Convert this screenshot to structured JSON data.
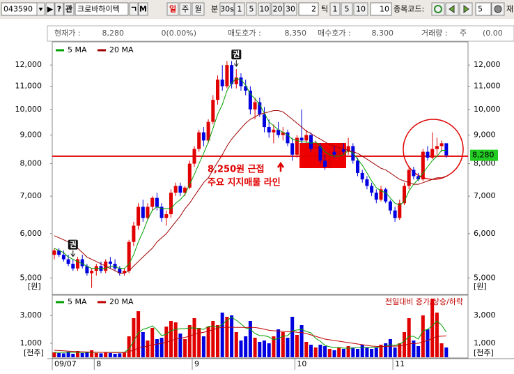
{
  "toolbar": {
    "code": "043590",
    "play": "▶",
    "help": "?",
    "watch": "관",
    "name": "크로바하이텍",
    "icon1": "ㄱ",
    "icon2": "M",
    "periods": [
      "일",
      "주",
      "월",
      "분"
    ],
    "minutes": [
      "30s",
      "1",
      "5",
      "10",
      "20",
      "30"
    ],
    "minute_input": "2",
    "tick": "틱",
    "ticks": [
      "1",
      "5",
      "10"
    ],
    "tick_input": "10",
    "code_label": "종목코드:",
    "count_input": "5",
    "more": "재"
  },
  "info_bar": {
    "price_label": "현재가 :",
    "price": "8,280",
    "change": "0(0.00%)",
    "ask_label": "매도호가 :",
    "ask": "8,350",
    "bid_label": "매수호가 :",
    "bid": "8,300",
    "volume_label": "거래량 :",
    "volume_unit": "주",
    "volume_change": "(0.00"
  },
  "chart_data": [
    {
      "type": "candlestick",
      "log_scale": true,
      "open": [
        5500,
        5600,
        5500,
        5400,
        5300,
        5200,
        5400,
        5250,
        5100,
        5150,
        5250,
        5150,
        5350,
        5300,
        5200,
        5100,
        5150,
        5800,
        6200,
        6700,
        6400,
        6700,
        6950,
        6700,
        6400,
        6500,
        7100,
        7300,
        7100,
        7250,
        8000,
        8500,
        9100,
        8800,
        9500,
        10400,
        11300,
        11000,
        12000,
        11100,
        11400,
        11000,
        10800,
        10000,
        10300,
        9800,
        9300,
        9100,
        9200,
        9000,
        9100,
        8700,
        8300,
        8900,
        8800,
        9000,
        8500,
        8600,
        8100,
        7900,
        8400,
        8300,
        8500,
        8400,
        8600,
        8100,
        7700,
        7500,
        7300,
        7100,
        6900,
        7200,
        6850,
        6600,
        6400,
        6800,
        7300,
        7800,
        7600,
        7500,
        8400,
        8200,
        8500,
        8600,
        8700
      ],
      "high": [
        5650,
        5650,
        5600,
        5500,
        5400,
        5450,
        5500,
        5300,
        5200,
        5300,
        5350,
        5400,
        5450,
        5400,
        5250,
        5200,
        5850,
        6300,
        6800,
        6900,
        6800,
        7000,
        7100,
        6800,
        6600,
        7200,
        7400,
        7400,
        7300,
        8100,
        8600,
        9200,
        9300,
        9600,
        10600,
        11500,
        12000,
        12200,
        12200,
        11800,
        11600,
        11300,
        11000,
        10500,
        10500,
        10100,
        9600,
        9400,
        9500,
        9300,
        9200,
        8900,
        9000,
        10000,
        9200,
        9100,
        8800,
        8700,
        8300,
        8500,
        8600,
        8600,
        8700,
        8900,
        8700,
        8200,
        7800,
        7600,
        7400,
        7200,
        7300,
        7250,
        6900,
        6700,
        6900,
        7400,
        7900,
        7900,
        7700,
        8500,
        8600,
        9100,
        8900,
        8800,
        8700
      ],
      "low": [
        5400,
        5450,
        5350,
        5250,
        5150,
        5150,
        5200,
        5050,
        4800,
        5050,
        5100,
        5100,
        5200,
        5150,
        5050,
        5050,
        5100,
        5700,
        6100,
        6300,
        6350,
        6600,
        6600,
        6300,
        6200,
        6400,
        7000,
        7000,
        7000,
        7200,
        7900,
        8400,
        8600,
        8700,
        9400,
        10200,
        10800,
        10900,
        10900,
        10900,
        10800,
        10600,
        9800,
        9600,
        9700,
        9100,
        8900,
        8700,
        8900,
        8800,
        8600,
        8100,
        8200,
        8700,
        8600,
        8400,
        8300,
        8000,
        7800,
        7850,
        8200,
        8200,
        8300,
        8300,
        8000,
        7600,
        7400,
        7200,
        7000,
        6800,
        6850,
        6800,
        6500,
        6300,
        6350,
        6750,
        7200,
        7500,
        7450,
        7450,
        8100,
        8150,
        8300,
        8400,
        8200
      ],
      "close": [
        5600,
        5500,
        5400,
        5300,
        5200,
        5400,
        5250,
        5100,
        5150,
        5250,
        5150,
        5350,
        5300,
        5200,
        5100,
        5150,
        5800,
        6200,
        6700,
        6400,
        6700,
        6950,
        6700,
        6400,
        6500,
        7100,
        7300,
        7100,
        7250,
        8000,
        8500,
        9100,
        8800,
        9500,
        10400,
        11300,
        11000,
        12000,
        11100,
        11400,
        11000,
        10800,
        10000,
        10300,
        9800,
        9300,
        9100,
        9200,
        9000,
        9100,
        8700,
        8300,
        8900,
        8800,
        9000,
        8500,
        8600,
        8100,
        7900,
        8400,
        8300,
        8500,
        8400,
        8600,
        8100,
        7700,
        7500,
        7300,
        7100,
        6900,
        7200,
        6850,
        6600,
        6400,
        6800,
        7300,
        7800,
        7600,
        7500,
        8400,
        8200,
        8500,
        8600,
        8700,
        8280
      ],
      "colors": {
        "up": "#e00000",
        "down": "#0000e0"
      },
      "series": [
        {
          "name": "5 MA",
          "color": "#00a000",
          "values": [
            5650,
            5600,
            5550,
            5450,
            5400,
            5350,
            5300,
            5250,
            5200,
            5200,
            5200,
            5200,
            5250,
            5250,
            5200,
            5200,
            5300,
            5500,
            5800,
            6050,
            6350,
            6600,
            6700,
            6650,
            6650,
            6650,
            6800,
            6900,
            7050,
            7350,
            7650,
            8000,
            8350,
            8750,
            9250,
            9800,
            10200,
            10800,
            11150,
            11350,
            11300,
            11050,
            10650,
            10450,
            10200,
            9850,
            9500,
            9350,
            9200,
            9100,
            9000,
            8850,
            8800,
            8750,
            8750,
            8700,
            8750,
            8600,
            8400,
            8300,
            8250,
            8250,
            8300,
            8450,
            8350,
            8150,
            7950,
            7700,
            7450,
            7250,
            7150,
            7100,
            6950,
            6800,
            6750,
            6850,
            7150,
            7350,
            7500,
            7700,
            7900,
            8100,
            8250,
            8450,
            8450
          ]
        },
        {
          "name": "20 MA",
          "color": "#a00000",
          "values": [
            5950,
            5900,
            5850,
            5800,
            5700,
            5650,
            5550,
            5450,
            5400,
            5350,
            5300,
            5250,
            5200,
            5150,
            5100,
            5100,
            5150,
            5250,
            5350,
            5450,
            5550,
            5650,
            5800,
            5900,
            6000,
            6150,
            6300,
            6450,
            6650,
            6800,
            7000,
            7200,
            7400,
            7550,
            7800,
            8050,
            8300,
            8600,
            8850,
            9050,
            9250,
            9450,
            9600,
            9700,
            9800,
            9850,
            9900,
            9950,
            9950,
            9900,
            9750,
            9600,
            9450,
            9300,
            9150,
            9050,
            8950,
            8850,
            8750,
            8650,
            8600,
            8550,
            8500,
            8450,
            8400,
            8350,
            8250,
            8150,
            8050,
            7950,
            7850,
            7800,
            7700,
            7600,
            7500,
            7450,
            7400,
            7350,
            7350,
            7400,
            7450,
            7500,
            7550,
            7550,
            7600
          ]
        }
      ],
      "ylim": [
        4700,
        13200
      ],
      "yticks": [
        {
          "value": 5000,
          "label": "5,000"
        },
        {
          "value": 6000,
          "label": "6,000"
        },
        {
          "value": 7000,
          "label": "7,000"
        },
        {
          "value": 8000,
          "label": "8,000"
        },
        {
          "value": 9000,
          "label": "9,000"
        },
        {
          "value": 10000,
          "label": "10,000"
        },
        {
          "value": 11000,
          "label": "11,000"
        },
        {
          "value": 12000,
          "label": "12,000"
        }
      ],
      "y_unit": "[원]",
      "xticks": [
        {
          "value": 0,
          "label": "09/07"
        },
        {
          "value": 9,
          "label": "8"
        },
        {
          "value": 30,
          "label": "9"
        },
        {
          "value": 52,
          "label": "10"
        },
        {
          "value": 73,
          "label": "11"
        }
      ],
      "support_line": 8250,
      "last_price": {
        "value": 8280,
        "label": "8,280"
      },
      "markers": [
        {
          "index": 4,
          "label": "권"
        },
        {
          "index": 39,
          "label": "권"
        }
      ],
      "annotations": [
        "8,250원 근접",
        "주요 지지매물 라인"
      ]
    },
    {
      "type": "bar",
      "values": [
        350,
        300,
        280,
        400,
        250,
        450,
        300,
        380,
        500,
        300,
        280,
        350,
        300,
        250,
        280,
        320,
        1500,
        2800,
        3300,
        1800,
        1200,
        2100,
        1300,
        1400,
        2200,
        2600,
        2500,
        1700,
        1300,
        2300,
        2800,
        2100,
        1500,
        2200,
        2600,
        2300,
        3200,
        2900,
        3000,
        1800,
        1200,
        1500,
        2600,
        1400,
        1100,
        1200,
        1000,
        1500,
        2000,
        1800,
        1400,
        2900,
        1600,
        2300,
        1100,
        900,
        700,
        900,
        800,
        600,
        500,
        700,
        600,
        800,
        700,
        600,
        900,
        700,
        600,
        700,
        900,
        1000,
        1300,
        700,
        1000,
        1800,
        2800,
        1200,
        800,
        3000,
        2000,
        4200,
        3200,
        1000,
        700
      ],
      "series": [
        {
          "name": "5 MA",
          "color": "#00a000",
          "values": [
            350,
            350,
            350,
            350,
            350,
            350,
            350,
            350,
            350,
            350,
            350,
            350,
            350,
            350,
            350,
            350,
            600,
            1150,
            1750,
            2000,
            2100,
            2250,
            1950,
            1550,
            1650,
            1900,
            2000,
            2050,
            2050,
            2100,
            2100,
            2050,
            2000,
            2200,
            2250,
            2150,
            2350,
            2650,
            2850,
            2650,
            2400,
            2100,
            2000,
            1700,
            1550,
            1550,
            1450,
            1250,
            1350,
            1500,
            1550,
            1900,
            1950,
            2000,
            1850,
            1750,
            1350,
            1150,
            850,
            750,
            700,
            700,
            650,
            650,
            650,
            700,
            700,
            700,
            700,
            700,
            750,
            800,
            900,
            850,
            950,
            1150,
            1500,
            1500,
            1300,
            1900,
            2000,
            2250,
            2600,
            2300,
            1800
          ]
        },
        {
          "name": "20 MA",
          "color": "#c00000",
          "values": [
            500,
            480,
            460,
            440,
            420,
            400,
            390,
            380,
            370,
            360,
            350,
            350,
            340,
            340,
            340,
            340,
            400,
            520,
            650,
            740,
            800,
            890,
            940,
            1000,
            1080,
            1190,
            1300,
            1370,
            1420,
            1520,
            1640,
            1730,
            1790,
            1870,
            1980,
            2080,
            2150,
            2140,
            2150,
            2140,
            2140,
            2130,
            2140,
            2130,
            2080,
            2010,
            1930,
            1900,
            1880,
            1850,
            1830,
            1840,
            1790,
            1780,
            1700,
            1600,
            1500,
            1400,
            1300,
            1250,
            1200,
            1150,
            1100,
            1050,
            1000,
            950,
            900,
            850,
            800,
            780,
            770,
            780,
            790,
            800,
            810,
            860,
            960,
            990,
            1000,
            1120,
            1190,
            1360,
            1490,
            1510,
            1530
          ]
        }
      ],
      "ylim": [
        0,
        4350
      ],
      "yticks": [
        {
          "value": 1000,
          "label": "1,000"
        },
        {
          "value": 3000,
          "label": "3,000"
        }
      ],
      "y_unit": "[천주]",
      "note": "전일대비 증가/상승/하락"
    }
  ]
}
